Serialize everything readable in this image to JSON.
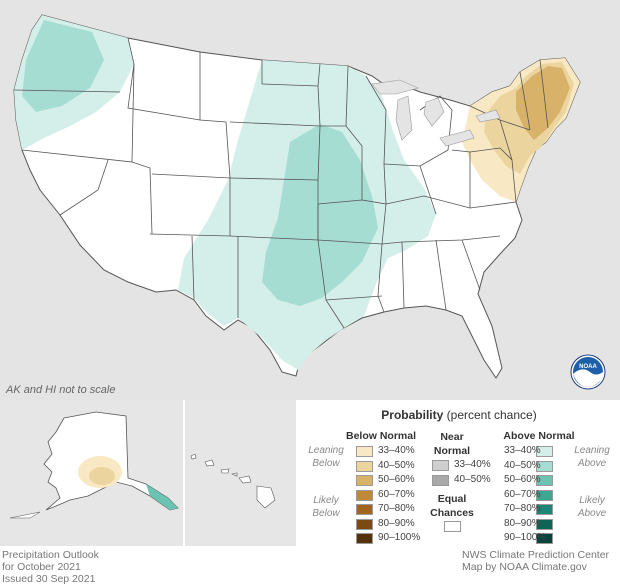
{
  "map": {
    "scale_note": "AK and HI not to scale",
    "logo_text": "NOAA"
  },
  "legend": {
    "title_bold": "Probability",
    "title_rest": " (percent chance)",
    "below_normal": {
      "heading": "Below Normal",
      "categories": [
        "Leaning",
        "Below",
        "Likely",
        "Below"
      ],
      "bins": [
        {
          "label": "33–40%",
          "color": "#f8e9c4"
        },
        {
          "label": "40–50%",
          "color": "#ecd49e"
        },
        {
          "label": "50–60%",
          "color": "#d9b26a"
        },
        {
          "label": "60–70%",
          "color": "#c0893a"
        },
        {
          "label": "70–80%",
          "color": "#a0661e"
        },
        {
          "label": "80–90%",
          "color": "#7a4a12"
        },
        {
          "label": "90–100%",
          "color": "#55330a"
        }
      ]
    },
    "near_normal": {
      "heading_line1": "Near",
      "heading_line2": "Normal",
      "bins": [
        {
          "label": "33–40%",
          "color": "#cfcfcf"
        },
        {
          "label": "40–50%",
          "color": "#a9a9a9"
        }
      ]
    },
    "equal_chances": {
      "line1": "Equal",
      "line2": "Chances",
      "color": "#ffffff"
    },
    "above_normal": {
      "heading": "Above Normal",
      "categories": [
        "Leaning",
        "Above",
        "Likely",
        "Above"
      ],
      "bins": [
        {
          "label": "33–40%",
          "color": "#d4efe9"
        },
        {
          "label": "40–50%",
          "color": "#a6ddd2"
        },
        {
          "label": "50–60%",
          "color": "#6cc3b2"
        },
        {
          "label": "60–70%",
          "color": "#3ea593"
        },
        {
          "label": "70–80%",
          "color": "#1d8574"
        },
        {
          "label": "80–90%",
          "color": "#0f6456"
        },
        {
          "label": "90–100%",
          "color": "#06433a"
        }
      ]
    }
  },
  "footer": {
    "left": [
      "Precipitation Outlook",
      "for October 2021",
      "Issued 30 Sep 2021"
    ],
    "right": [
      "NWS Climate Prediction Center",
      "Map by NOAA Climate.gov"
    ]
  },
  "colors": {
    "background_land": "#e4e4e4",
    "state_fill": "#ffffff",
    "state_border": "#555555",
    "above_33_40": "#d4efe9",
    "above_40_50": "#a6ddd2",
    "below_33_40": "#f8e9c4",
    "below_40_50": "#ecd49e",
    "below_50_60": "#d9b26a"
  }
}
